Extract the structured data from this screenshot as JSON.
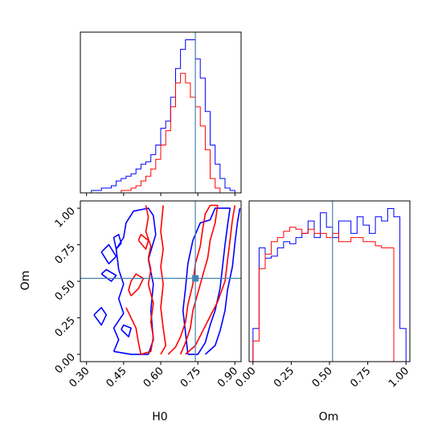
{
  "chart_data": [
    {
      "panel": "H0-marginal",
      "type": "histogram",
      "xlim": [
        0.275,
        0.925
      ],
      "bin_edges": [
        0.3,
        0.32,
        0.34,
        0.36,
        0.38,
        0.4,
        0.42,
        0.44,
        0.46,
        0.48,
        0.5,
        0.52,
        0.54,
        0.56,
        0.58,
        0.6,
        0.62,
        0.64,
        0.66,
        0.68,
        0.7,
        0.72,
        0.74,
        0.76,
        0.78,
        0.8,
        0.82,
        0.84,
        0.86,
        0.88,
        0.9
      ],
      "series": [
        {
          "color": "#0000ff",
          "counts": [
            0,
            1,
            1,
            2,
            2,
            3,
            5,
            6,
            7,
            8,
            10,
            12,
            13,
            16,
            20,
            27,
            30,
            40,
            52,
            60,
            64,
            64,
            56,
            48,
            34,
            20,
            12,
            6,
            2,
            1
          ]
        },
        {
          "color": "#ff0000",
          "counts": [
            0,
            0,
            0,
            0,
            0,
            0,
            0,
            1,
            1,
            2,
            3,
            5,
            7,
            10,
            14,
            20,
            26,
            36,
            46,
            50,
            46,
            40,
            36,
            28,
            18,
            6,
            2,
            0,
            0,
            0
          ]
        }
      ],
      "truth_x": 0.74
    },
    {
      "panel": "Om-marginal",
      "type": "histogram",
      "xlim": [
        -0.025,
        1.025
      ],
      "bin_edges": [
        0.0,
        0.04,
        0.08,
        0.12,
        0.16,
        0.2,
        0.24,
        0.28,
        0.32,
        0.36,
        0.4,
        0.44,
        0.48,
        0.52,
        0.56,
        0.6,
        0.64,
        0.68,
        0.72,
        0.76,
        0.8,
        0.84,
        0.88,
        0.92,
        0.96,
        1.0
      ],
      "series": [
        {
          "color": "#0000ff",
          "counts": [
            16,
            55,
            50,
            51,
            55,
            58,
            57,
            60,
            62,
            68,
            60,
            72,
            65,
            60,
            68,
            68,
            62,
            70,
            66,
            62,
            70,
            68,
            74,
            70,
            16
          ]
        },
        {
          "color": "#ff0000",
          "counts": [
            10,
            45,
            52,
            58,
            60,
            63,
            65,
            64,
            62,
            64,
            62,
            62,
            60,
            62,
            58,
            58,
            60,
            60,
            58,
            58,
            56,
            55,
            55,
            0,
            0
          ]
        }
      ],
      "truth_x": 0.52
    },
    {
      "panel": "H0-Om-joint",
      "type": "contour",
      "xlabel": "H0",
      "ylabel": "Om",
      "xlim": [
        0.275,
        0.925
      ],
      "ylim": [
        -0.05,
        1.05
      ],
      "xticks": [
        "0.30",
        "0.45",
        "0.60",
        "0.75",
        "0.90"
      ],
      "yticks": [
        "0.00",
        "0.25",
        "0.50",
        "0.75",
        "1.00"
      ],
      "truth": [
        0.74,
        0.52
      ],
      "series": [
        {
          "color": "#0000ff",
          "contours": [
            [
              [
                0.41,
                0.02
              ],
              [
                0.48,
                0.0
              ],
              [
                0.55,
                0.0
              ],
              [
                0.57,
                0.1
              ],
              [
                0.56,
                0.3
              ],
              [
                0.57,
                0.48
              ],
              [
                0.55,
                0.65
              ],
              [
                0.58,
                0.82
              ],
              [
                0.57,
                0.95
              ],
              [
                0.55,
                1.0
              ],
              [
                0.49,
                0.98
              ],
              [
                0.46,
                0.9
              ],
              [
                0.45,
                0.8
              ],
              [
                0.42,
                0.72
              ],
              [
                0.43,
                0.58
              ],
              [
                0.45,
                0.48
              ],
              [
                0.43,
                0.38
              ],
              [
                0.45,
                0.28
              ],
              [
                0.41,
                0.18
              ],
              [
                0.43,
                0.1
              ],
              [
                0.41,
                0.02
              ]
            ],
            [
              [
                0.36,
                0.7
              ],
              [
                0.39,
                0.62
              ],
              [
                0.42,
                0.67
              ],
              [
                0.39,
                0.75
              ],
              [
                0.36,
                0.7
              ]
            ],
            [
              [
                0.36,
                0.55
              ],
              [
                0.4,
                0.5
              ],
              [
                0.42,
                0.54
              ],
              [
                0.38,
                0.58
              ],
              [
                0.36,
                0.55
              ]
            ],
            [
              [
                0.33,
                0.27
              ],
              [
                0.36,
                0.2
              ],
              [
                0.38,
                0.27
              ],
              [
                0.36,
                0.32
              ],
              [
                0.33,
                0.27
              ]
            ],
            [
              [
                0.44,
                0.17
              ],
              [
                0.47,
                0.12
              ],
              [
                0.48,
                0.18
              ],
              [
                0.45,
                0.2
              ],
              [
                0.44,
                0.17
              ]
            ],
            [
              [
                0.42,
                0.72
              ],
              [
                0.44,
                0.76
              ],
              [
                0.43,
                0.82
              ],
              [
                0.41,
                0.8
              ],
              [
                0.42,
                0.72
              ]
            ],
            [
              [
                0.71,
                0.0
              ],
              [
                0.75,
                0.0
              ],
              [
                0.78,
                0.08
              ],
              [
                0.8,
                0.2
              ],
              [
                0.82,
                0.3
              ],
              [
                0.84,
                0.45
              ],
              [
                0.85,
                0.6
              ],
              [
                0.86,
                0.75
              ],
              [
                0.87,
                0.88
              ],
              [
                0.88,
                1.0
              ],
              [
                0.82,
                1.0
              ],
              [
                0.8,
                0.92
              ],
              [
                0.76,
                0.9
              ],
              [
                0.73,
                0.78
              ],
              [
                0.71,
                0.62
              ],
              [
                0.7,
                0.45
              ],
              [
                0.69,
                0.3
              ],
              [
                0.7,
                0.15
              ],
              [
                0.71,
                0.0
              ]
            ],
            [
              [
                0.78,
                0.0
              ],
              [
                0.82,
                0.06
              ],
              [
                0.84,
                0.16
              ],
              [
                0.86,
                0.3
              ],
              [
                0.87,
                0.44
              ],
              [
                0.89,
                0.6
              ],
              [
                0.9,
                0.76
              ],
              [
                0.91,
                0.9
              ],
              [
                0.92,
                1.0
              ]
            ]
          ]
        },
        {
          "color": "#ff0000",
          "contours": [
            [
              [
                0.46,
                0.32
              ],
              [
                0.48,
                0.25
              ],
              [
                0.5,
                0.18
              ],
              [
                0.51,
                0.08
              ],
              [
                0.52,
                0.0
              ],
              [
                0.56,
                0.02
              ],
              [
                0.57,
                0.12
              ],
              [
                0.56,
                0.22
              ],
              [
                0.57,
                0.35
              ],
              [
                0.55,
                0.48
              ],
              [
                0.56,
                0.58
              ],
              [
                0.55,
                0.66
              ],
              [
                0.56,
                0.74
              ],
              [
                0.54,
                0.84
              ],
              [
                0.55,
                0.94
              ],
              [
                0.54,
                1.02
              ]
            ],
            [
              [
                0.6,
                0.0
              ],
              [
                0.62,
                0.06
              ],
              [
                0.61,
                0.18
              ],
              [
                0.6,
                0.32
              ],
              [
                0.61,
                0.48
              ],
              [
                0.6,
                0.6
              ],
              [
                0.61,
                0.72
              ],
              [
                0.6,
                0.84
              ],
              [
                0.61,
                1.02
              ]
            ],
            [
              [
                0.63,
                0.0
              ],
              [
                0.66,
                0.05
              ],
              [
                0.68,
                0.12
              ],
              [
                0.7,
                0.22
              ],
              [
                0.71,
                0.34
              ],
              [
                0.73,
                0.48
              ],
              [
                0.74,
                0.62
              ],
              [
                0.76,
                0.74
              ],
              [
                0.77,
                0.86
              ],
              [
                0.78,
                0.96
              ],
              [
                0.8,
                1.02
              ],
              [
                0.83,
                1.02
              ],
              [
                0.82,
                0.9
              ],
              [
                0.8,
                0.78
              ],
              [
                0.79,
                0.66
              ],
              [
                0.77,
                0.54
              ],
              [
                0.75,
                0.42
              ],
              [
                0.73,
                0.3
              ],
              [
                0.72,
                0.18
              ],
              [
                0.7,
                0.08
              ],
              [
                0.68,
                0.0
              ]
            ],
            [
              [
                0.7,
                0.0
              ],
              [
                0.74,
                0.06
              ],
              [
                0.77,
                0.16
              ],
              [
                0.8,
                0.26
              ],
              [
                0.83,
                0.36
              ],
              [
                0.86,
                0.5
              ],
              [
                0.87,
                0.64
              ],
              [
                0.88,
                0.78
              ],
              [
                0.89,
                0.92
              ],
              [
                0.9,
                1.02
              ]
            ],
            [
              [
                0.51,
                0.78
              ],
              [
                0.54,
                0.72
              ],
              [
                0.55,
                0.78
              ],
              [
                0.52,
                0.82
              ],
              [
                0.51,
                0.78
              ]
            ],
            [
              [
                0.48,
                0.4
              ],
              [
                0.51,
                0.45
              ],
              [
                0.53,
                0.52
              ],
              [
                0.5,
                0.55
              ],
              [
                0.48,
                0.5
              ],
              [
                0.47,
                0.44
              ],
              [
                0.48,
                0.4
              ]
            ]
          ]
        }
      ]
    }
  ],
  "colors": {
    "truth_line": "#4682b4",
    "blue": "#0000ff",
    "red": "#ff0000",
    "axis": "#000000"
  }
}
